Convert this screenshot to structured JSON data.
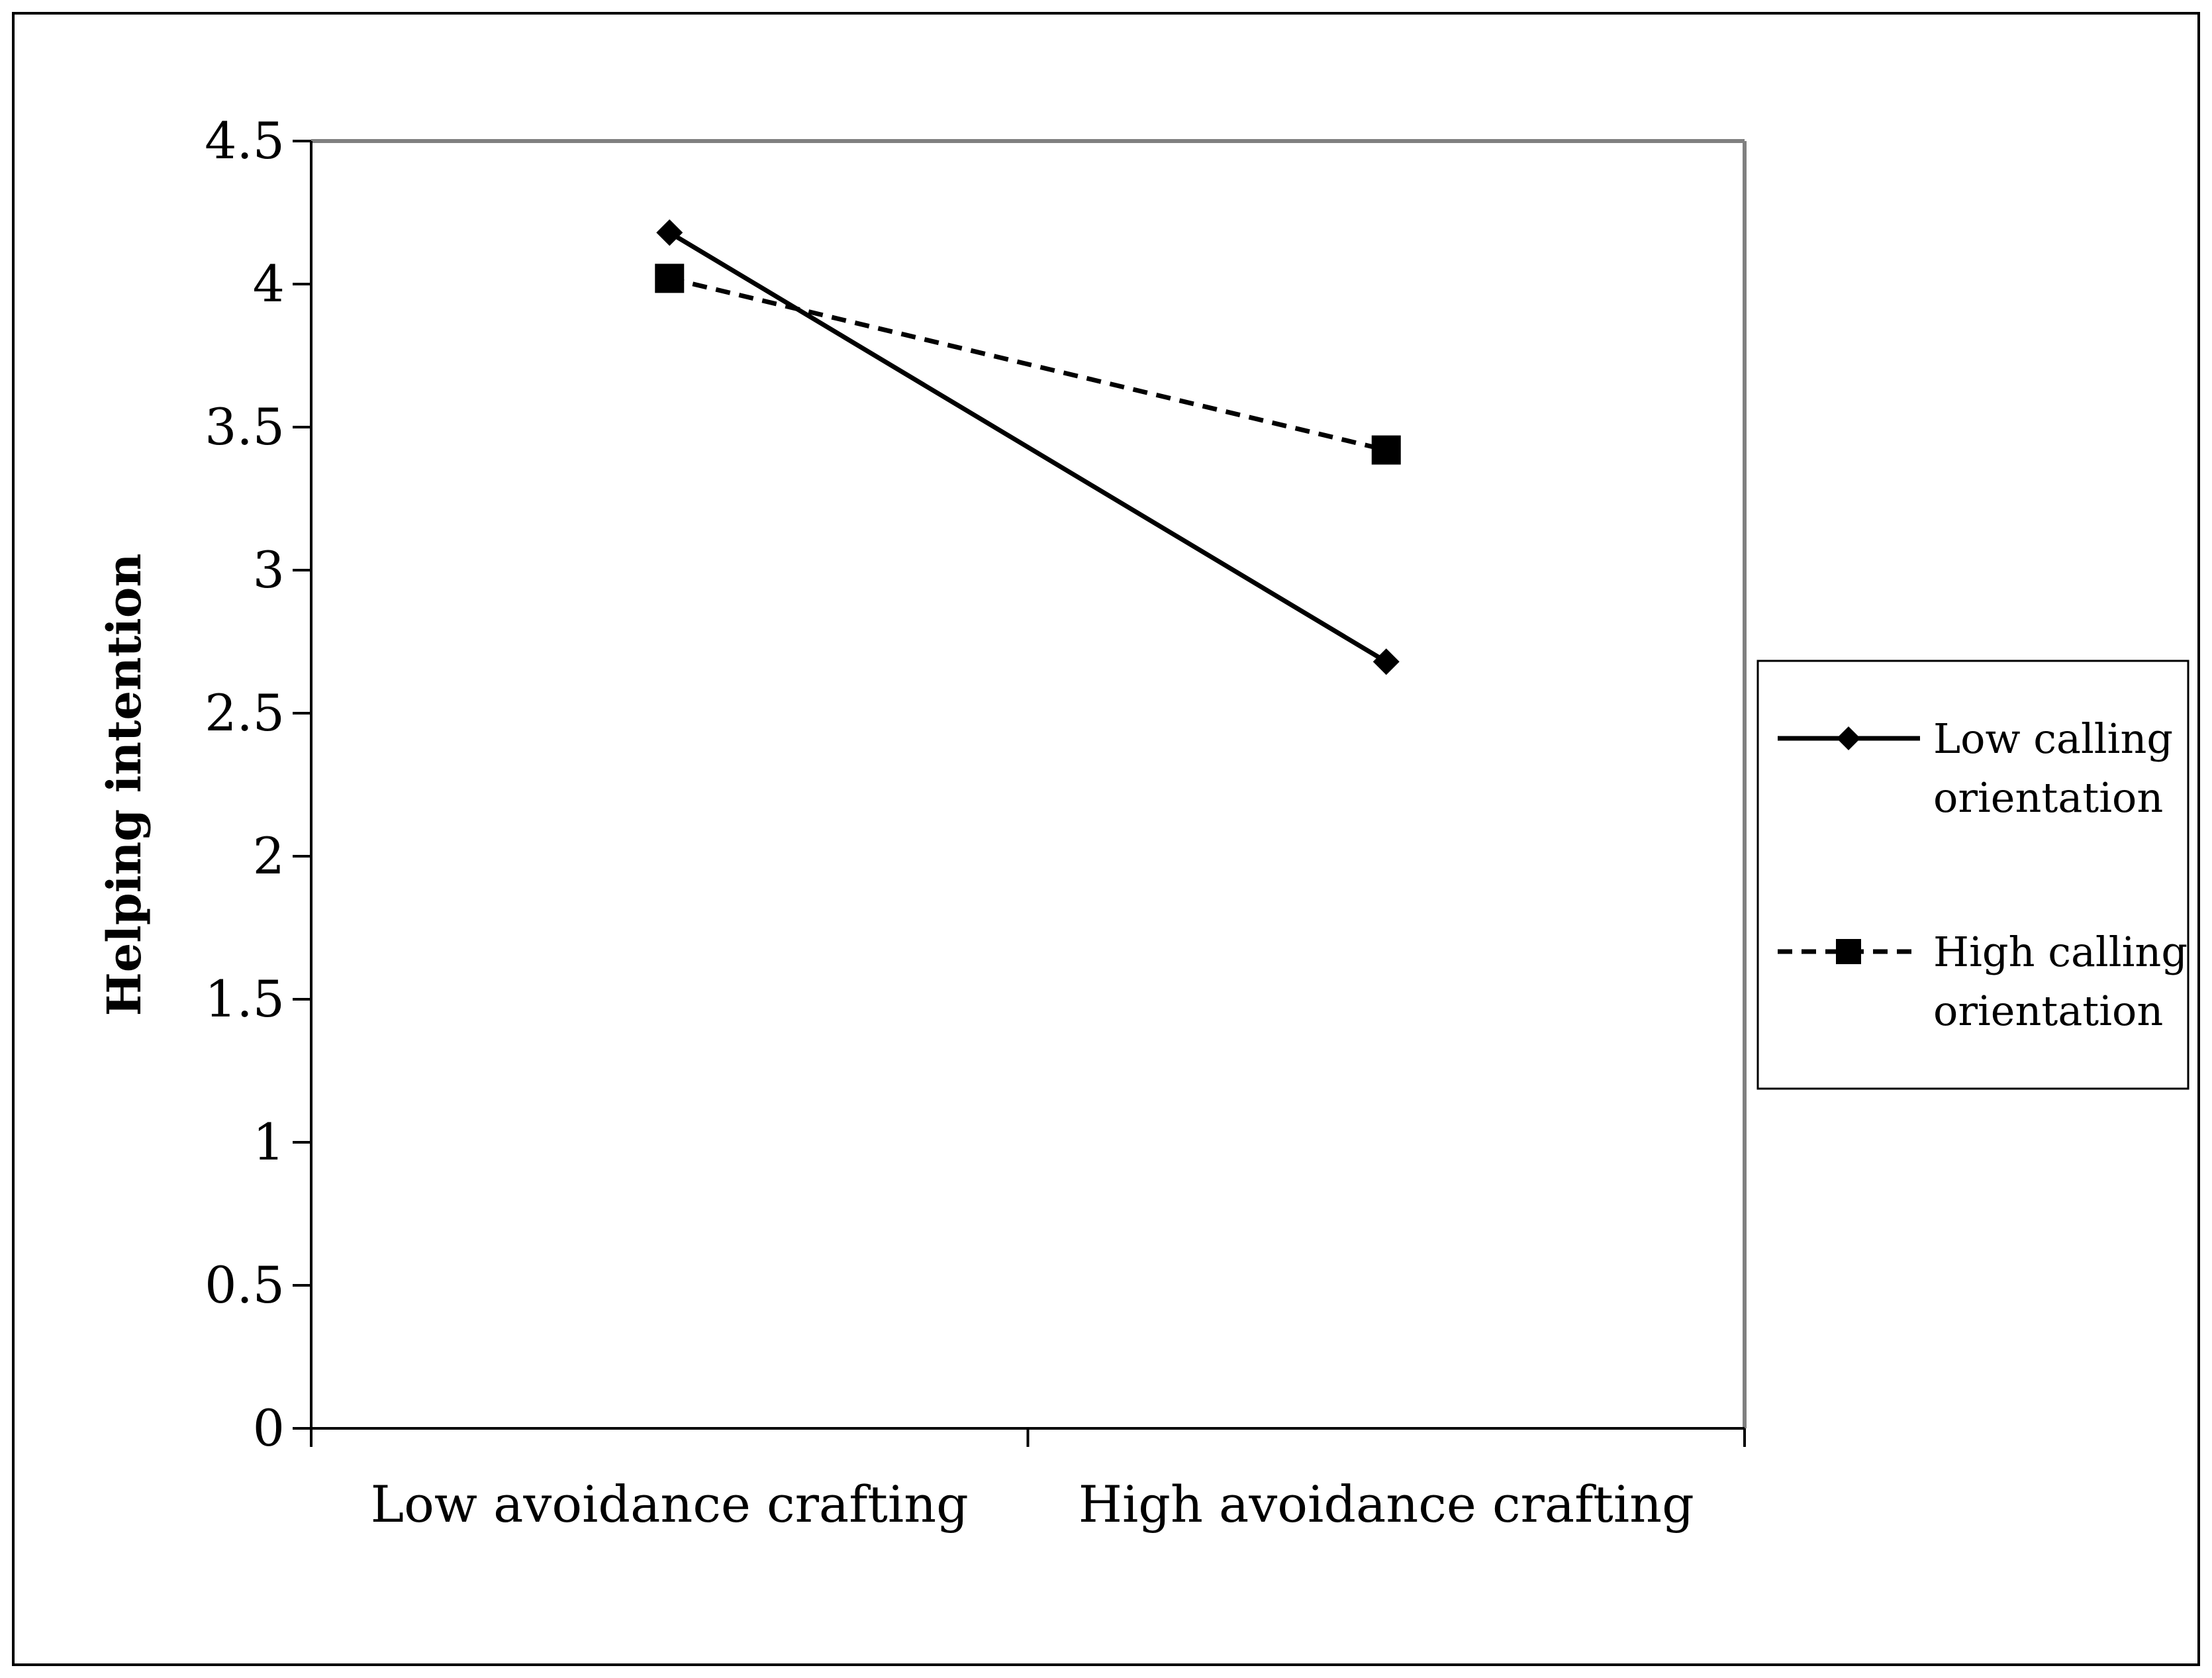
{
  "chart_data": {
    "type": "line",
    "title": "",
    "xlabel": "",
    "ylabel": "Helping intention",
    "categories": [
      "Low avoidance crafting",
      "High avoidance crafting"
    ],
    "ylim": [
      0,
      4.5
    ],
    "yticks": [
      "0",
      "0.5",
      "1",
      "1.5",
      "2",
      "2.5",
      "3",
      "3.5",
      "4",
      "4.5"
    ],
    "ytick_values": [
      0,
      0.5,
      1,
      1.5,
      2,
      2.5,
      3,
      3.5,
      4,
      4.5
    ],
    "grid": false,
    "legend_position": "right",
    "series": [
      {
        "name": "Low calling orientation",
        "name_lines": [
          "Low calling",
          "orientation"
        ],
        "values": [
          4.18,
          2.68
        ],
        "line_style": "solid",
        "marker": "diamond",
        "color": "#000000"
      },
      {
        "name": "High calling orientation",
        "name_lines": [
          "High calling",
          "orientation"
        ],
        "values": [
          4.02,
          3.42
        ],
        "line_style": "dashed",
        "marker": "square",
        "color": "#000000"
      }
    ]
  },
  "colors": {
    "frame": "#808080",
    "axis": "#000000",
    "background": "#ffffff"
  }
}
